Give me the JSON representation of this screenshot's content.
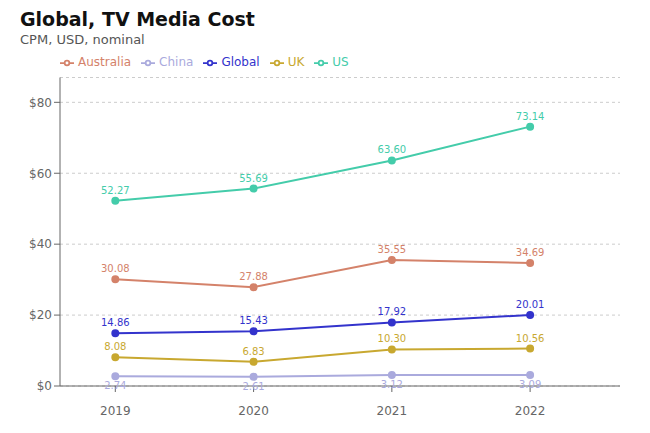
{
  "chart_data": {
    "type": "line",
    "title": "Global, TV Media Cost",
    "subtitle": "CPM, USD, nominal",
    "x": [
      2019,
      2020,
      2021,
      2022
    ],
    "xlim": [
      2018.6,
      2022.65
    ],
    "xticks": [
      2019,
      2020,
      2021,
      2022
    ],
    "ylim": [
      0,
      87
    ],
    "yticks": [
      {
        "value": 0,
        "label": "$0"
      },
      {
        "value": 20,
        "label": "$20"
      },
      {
        "value": 40,
        "label": "$40"
      },
      {
        "value": 60,
        "label": "$60"
      },
      {
        "value": 80,
        "label": "$80"
      }
    ],
    "grid": true,
    "legend": "top",
    "data_labels": true,
    "series": [
      {
        "name": "Global",
        "color": "#3333cc",
        "marker": "circle",
        "values": [
          14.86,
          15.43,
          17.92,
          20.01
        ],
        "value_labels": [
          "14.86",
          "15.43",
          "17.92",
          "20.01"
        ]
      },
      {
        "name": "Australia",
        "color": "#d4826a",
        "marker": "circle",
        "values": [
          30.08,
          27.88,
          35.55,
          34.69
        ],
        "value_labels": [
          "30.08",
          "27.88",
          "35.55",
          "34.69"
        ]
      },
      {
        "name": "China",
        "color": "#aaaadd",
        "marker": "circle",
        "values": [
          2.74,
          2.61,
          3.12,
          3.09
        ],
        "value_labels": [
          "2.74",
          "2.61",
          "3.12",
          "3.09"
        ]
      },
      {
        "name": "UK",
        "color": "#c8a830",
        "marker": "circle",
        "values": [
          8.08,
          6.83,
          10.3,
          10.56
        ],
        "value_labels": [
          "8.08",
          "6.83",
          "10.30",
          "10.56"
        ]
      },
      {
        "name": "US",
        "color": "#44ccaa",
        "marker": "circle",
        "values": [
          52.27,
          55.69,
          63.6,
          73.14
        ],
        "value_labels": [
          "52.27",
          "55.69",
          "63.60",
          "73.14"
        ]
      }
    ]
  }
}
